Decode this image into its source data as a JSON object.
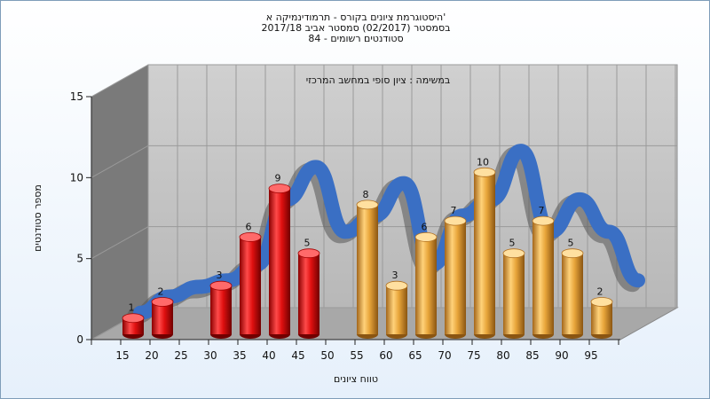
{
  "chart_data": {
    "type": "bar",
    "title_lines": [
      "היסטוגרמת ציונים בקורס - תרמודינמיקה א'",
      "בסמסטר  (02/2017)  סמסטר אביב 2017/18",
      "סטודנטים רשומים - 84"
    ],
    "annotation": "במשימה : ציון סופי במחשב המרכזי",
    "xlabel": "טווח ציונים",
    "ylabel": "מספר סטודנטים",
    "categories": [
      "15",
      "20",
      "25",
      "30",
      "35",
      "40",
      "45",
      "50",
      "55",
      "60",
      "65",
      "70",
      "75",
      "80",
      "85",
      "90",
      "95"
    ],
    "y_ticks": [
      "0",
      "5",
      "10",
      "15"
    ],
    "ylim": [
      0,
      15
    ],
    "bars": [
      {
        "x": 15,
        "value": 1,
        "color": "red"
      },
      {
        "x": 20,
        "value": 2,
        "color": "red"
      },
      {
        "x": 30,
        "value": 3,
        "color": "red"
      },
      {
        "x": 35,
        "value": 6,
        "color": "red"
      },
      {
        "x": 40,
        "value": 9,
        "color": "red"
      },
      {
        "x": 45,
        "value": 5,
        "color": "red"
      },
      {
        "x": 55,
        "value": 8,
        "color": "orange"
      },
      {
        "x": 60,
        "value": 3,
        "color": "orange"
      },
      {
        "x": 65,
        "value": 6,
        "color": "orange"
      },
      {
        "x": 70,
        "value": 7,
        "color": "orange"
      },
      {
        "x": 75,
        "value": 10,
        "color": "orange"
      },
      {
        "x": 80,
        "value": 5,
        "color": "orange"
      },
      {
        "x": 85,
        "value": 7,
        "color": "orange"
      },
      {
        "x": 90,
        "value": 5,
        "color": "orange"
      }
    ],
    "curve_points": [
      {
        "x": 15,
        "y": 1
      },
      {
        "x": 20,
        "y": 2
      },
      {
        "x": 25,
        "y": 2.6
      },
      {
        "x": 30,
        "y": 3
      },
      {
        "x": 35,
        "y": 4
      },
      {
        "x": 40,
        "y": 8
      },
      {
        "x": 45,
        "y": 10
      },
      {
        "x": 50,
        "y": 6
      },
      {
        "x": 55,
        "y": 7
      },
      {
        "x": 60,
        "y": 9
      },
      {
        "x": 65,
        "y": 4
      },
      {
        "x": 70,
        "y": 7
      },
      {
        "x": 75,
        "y": 8
      },
      {
        "x": 80,
        "y": 11
      },
      {
        "x": 85,
        "y": 6
      },
      {
        "x": 90,
        "y": 8
      },
      {
        "x": 95,
        "y": 6
      },
      {
        "x": 100,
        "y": 3
      }
    ],
    "extra_bar": {
      "x": 95,
      "value": 2,
      "color": "orange"
    },
    "colors": {
      "red": "#e01010",
      "orange": "#e8a53a",
      "curve": "#3a6fc4",
      "back_wall": "#c0c0c0",
      "side_wall": "#7a7a7a",
      "floor": "#a8a8a8"
    },
    "grid": true
  }
}
